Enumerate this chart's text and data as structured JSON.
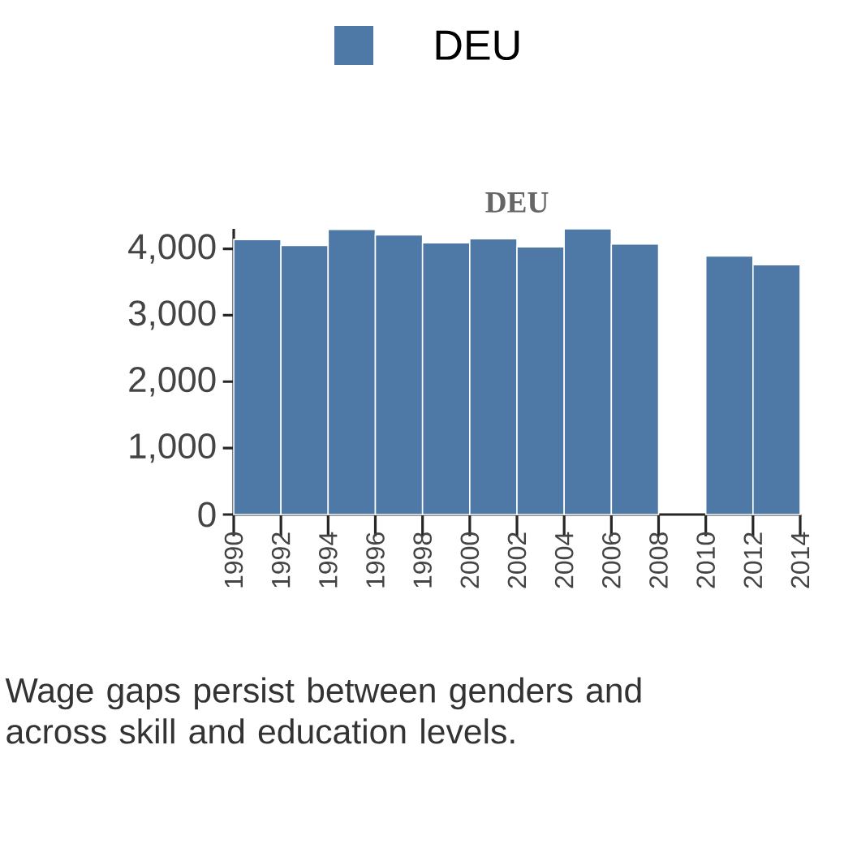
{
  "chart_data": {
    "type": "histogram",
    "title": "DEU",
    "bins": [
      1990,
      1992,
      1994,
      1996,
      1998,
      2000,
      2002,
      2004,
      2006,
      2008,
      2010,
      2012,
      2014
    ],
    "series": [
      {
        "name": "DEU",
        "color": "#4e79a7",
        "values": [
          4140,
          4050,
          4290,
          4210,
          4090,
          4150,
          4030,
          4300,
          4070,
          null,
          3890,
          3760
        ]
      }
    ],
    "xlim": [
      1990,
      2014
    ],
    "xticks": [
      1990,
      1992,
      1994,
      1996,
      1998,
      2000,
      2002,
      2004,
      2006,
      2008,
      2010,
      2012,
      2014
    ],
    "ylim": [
      0,
      4300
    ],
    "yticks": [
      {
        "value": 0,
        "label": "0"
      },
      {
        "value": 1000,
        "label": "1,000"
      },
      {
        "value": 2000,
        "label": "2,000"
      },
      {
        "value": 3000,
        "label": "3,000"
      },
      {
        "value": 4000,
        "label": "4,000"
      }
    ],
    "legend": "top",
    "annotations": [
      "Wage gaps persist between genders and across skill and education levels."
    ]
  }
}
